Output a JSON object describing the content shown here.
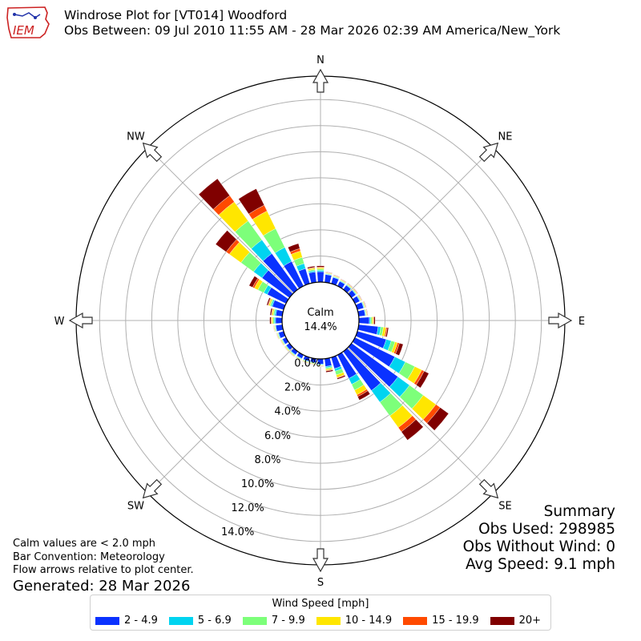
{
  "title": {
    "line1": "Windrose Plot for [VT014] Woodford",
    "line2": "Obs Between: 09 Jul 2010 11:55 AM - 28 Mar 2026 02:39 AM America/New_York"
  },
  "logo": {
    "text": "IEM",
    "icon": "iem-logo-iowa-map"
  },
  "summary": {
    "heading": "Summary",
    "obs_used": "Obs Used: 298985",
    "obs_without_wind": "Obs Without Wind: 0",
    "avg_speed": "Avg Speed: 9.1 mph"
  },
  "notes": {
    "calm_values": "Calm values are < 2.0 mph",
    "bar_convention": "Bar Convention: Meteorology",
    "flow_arrows": "Flow arrows relative to plot center.",
    "generated": "Generated: 28 Mar 2026"
  },
  "legend": {
    "title": "Wind Speed [mph]",
    "entries": [
      {
        "label": "2 - 4.9",
        "color": "#0a32ff"
      },
      {
        "label": "5 - 6.9",
        "color": "#00d4f0"
      },
      {
        "label": "7 - 9.9",
        "color": "#7dff7a"
      },
      {
        "label": "10 - 14.9",
        "color": "#ffe600"
      },
      {
        "label": "15 - 19.9",
        "color": "#ff4a00"
      },
      {
        "label": "20+",
        "color": "#800000"
      }
    ]
  },
  "chart_data": {
    "type": "windrose",
    "calm_label": "Calm",
    "calm_percent": "14.4%",
    "calm_fraction": 14.4,
    "radial_ticks": [
      "0.0%",
      "2.0%",
      "4.0%",
      "6.0%",
      "8.0%",
      "10.0%",
      "12.0%",
      "14.0%"
    ],
    "radial_tick_values": [
      0,
      2,
      4,
      6,
      8,
      10,
      12,
      14
    ],
    "r_max": 15.8,
    "compass": [
      "N",
      "NE",
      "E",
      "SE",
      "S",
      "SW",
      "W",
      "NW"
    ],
    "compass_angles": [
      0,
      45,
      90,
      135,
      180,
      225,
      270,
      315
    ],
    "directions": [
      0,
      10,
      20,
      30,
      40,
      50,
      60,
      70,
      80,
      90,
      100,
      110,
      120,
      130,
      140,
      150,
      160,
      170,
      180,
      190,
      200,
      210,
      220,
      230,
      240,
      250,
      260,
      270,
      280,
      290,
      300,
      310,
      320,
      330,
      340,
      350
    ],
    "series": [
      {
        "name": "2 - 4.9",
        "color": "#0a32ff",
        "values": [
          0.8,
          0.6,
          0.5,
          0.4,
          0.4,
          0.4,
          0.4,
          0.5,
          0.5,
          0.8,
          1.5,
          2.3,
          3.4,
          4.4,
          3.7,
          2.0,
          0.9,
          0.6,
          0.4,
          0.3,
          0.3,
          0.3,
          0.3,
          0.3,
          0.3,
          0.4,
          0.5,
          0.5,
          0.5,
          0.9,
          1.6,
          2.6,
          3.4,
          2.1,
          1.2,
          0.8
        ]
      },
      {
        "name": "5 - 6.9",
        "color": "#00d4f0",
        "values": [
          0.1,
          0.05,
          0.05,
          0.05,
          0.05,
          0.05,
          0.05,
          0.05,
          0.05,
          0.1,
          0.2,
          0.4,
          0.9,
          1.1,
          1.1,
          0.5,
          0.2,
          0.1,
          0.05,
          0.05,
          0.05,
          0.05,
          0.05,
          0.05,
          0.05,
          0.05,
          0.05,
          0.1,
          0.1,
          0.1,
          0.3,
          0.8,
          1.3,
          1.2,
          0.4,
          0.1
        ]
      },
      {
        "name": "7 - 9.9",
        "color": "#7dff7a",
        "values": [
          0.1,
          0.05,
          0.05,
          0.05,
          0.05,
          0.05,
          0.05,
          0.05,
          0.05,
          0.1,
          0.2,
          0.3,
          0.8,
          1.3,
          1.3,
          0.5,
          0.3,
          0.1,
          0.05,
          0.05,
          0.05,
          0.05,
          0.05,
          0.05,
          0.05,
          0.05,
          0.05,
          0.1,
          0.1,
          0.1,
          0.5,
          1.2,
          1.8,
          1.6,
          0.5,
          0.1
        ]
      },
      {
        "name": "10 - 14.9",
        "color": "#ffe600",
        "values": [
          0.1,
          0.05,
          0.05,
          0.05,
          0.05,
          0.05,
          0.05,
          0.05,
          0.05,
          0.1,
          0.2,
          0.2,
          0.6,
          1.2,
          1.1,
          0.4,
          0.2,
          0.1,
          0.05,
          0.05,
          0.05,
          0.05,
          0.05,
          0.05,
          0.05,
          0.05,
          0.05,
          0.1,
          0.1,
          0.1,
          0.3,
          1.1,
          1.8,
          1.5,
          0.5,
          0.1
        ]
      },
      {
        "name": "15 - 19.9",
        "color": "#ff4a00",
        "values": [
          0.05,
          0.03,
          0.03,
          0.03,
          0.03,
          0.03,
          0.03,
          0.03,
          0.03,
          0.05,
          0.1,
          0.15,
          0.2,
          0.4,
          0.4,
          0.15,
          0.05,
          0.05,
          0.02,
          0.02,
          0.02,
          0.02,
          0.02,
          0.02,
          0.02,
          0.02,
          0.02,
          0.05,
          0.05,
          0.05,
          0.15,
          0.3,
          0.6,
          0.5,
          0.2,
          0.05
        ]
      },
      {
        "name": "20+",
        "color": "#800000",
        "values": [
          0.1,
          0.03,
          0.03,
          0.03,
          0.03,
          0.03,
          0.03,
          0.03,
          0.03,
          0.1,
          0.1,
          0.3,
          0.4,
          0.8,
          0.8,
          0.3,
          0.1,
          0.1,
          0.02,
          0.02,
          0.02,
          0.02,
          0.02,
          0.02,
          0.02,
          0.02,
          0.02,
          0.1,
          0.1,
          0.1,
          0.3,
          1.0,
          1.6,
          1.4,
          0.4,
          0.1
        ]
      }
    ]
  }
}
